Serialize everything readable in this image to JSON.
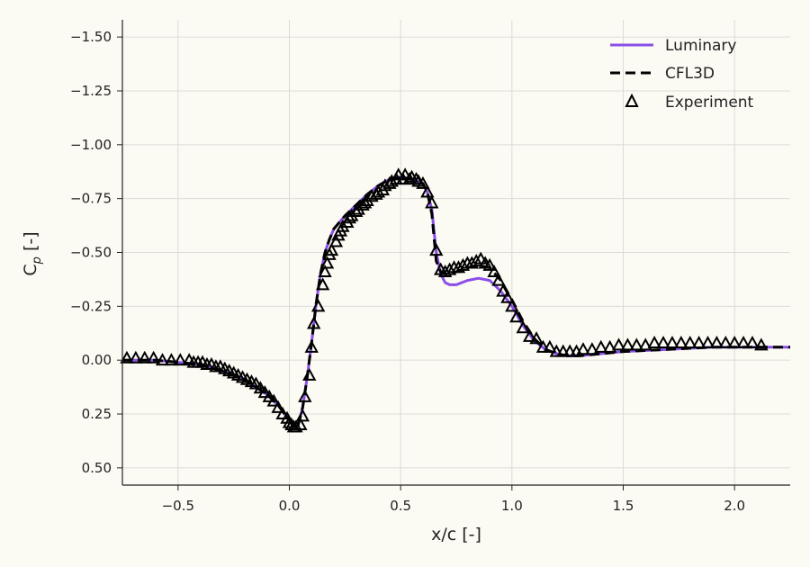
{
  "chart_data": {
    "type": "line",
    "title": "",
    "xlabel": "x/c [-]",
    "ylabel_main": "C",
    "ylabel_sub": "p",
    "ylabel_suffix": " [-]",
    "xlim": [
      -0.75,
      2.25
    ],
    "ylim": [
      0.58,
      -1.58
    ],
    "y_inverted": true,
    "grid": true,
    "legend_position": "top-right",
    "x_ticks": [
      -0.5,
      0.0,
      0.5,
      1.0,
      1.5,
      2.0
    ],
    "x_tick_labels": [
      "−0.5",
      "0.0",
      "0.5",
      "1.0",
      "1.5",
      "2.0"
    ],
    "y_ticks": [
      -1.5,
      -1.25,
      -1.0,
      -0.75,
      -0.5,
      -0.25,
      0.0,
      0.25,
      0.5
    ],
    "y_tick_labels": [
      "−1.50",
      "−1.25",
      "−1.00",
      "−0.75",
      "−0.50",
      "−0.25",
      "0.00",
      "0.25",
      "0.50"
    ],
    "colors": {
      "luminary": "#8b4fe8",
      "cfl3d": "#000000",
      "experiment": "#000000",
      "grid": "#dcdcd6",
      "background": "#fbfaf3"
    },
    "series": [
      {
        "name": "Luminary",
        "style": "solid",
        "x": [
          -0.75,
          -0.6,
          -0.5,
          -0.4,
          -0.3,
          -0.2,
          -0.1,
          -0.05,
          0.0,
          0.02,
          0.04,
          0.06,
          0.08,
          0.1,
          0.12,
          0.14,
          0.16,
          0.18,
          0.2,
          0.25,
          0.3,
          0.35,
          0.4,
          0.45,
          0.5,
          0.55,
          0.6,
          0.62,
          0.64,
          0.66,
          0.68,
          0.7,
          0.72,
          0.75,
          0.8,
          0.85,
          0.9,
          0.95,
          1.0,
          1.05,
          1.1,
          1.15,
          1.2,
          1.25,
          1.3,
          1.4,
          1.5,
          1.7,
          1.9,
          2.1,
          2.25
        ],
        "y": [
          0.0,
          0.0,
          0.01,
          0.02,
          0.05,
          0.09,
          0.16,
          0.21,
          0.28,
          0.31,
          0.3,
          0.22,
          0.08,
          -0.08,
          -0.26,
          -0.4,
          -0.5,
          -0.56,
          -0.61,
          -0.67,
          -0.72,
          -0.77,
          -0.81,
          -0.84,
          -0.85,
          -0.84,
          -0.82,
          -0.78,
          -0.7,
          -0.5,
          -0.4,
          -0.36,
          -0.35,
          -0.35,
          -0.37,
          -0.38,
          -0.37,
          -0.32,
          -0.25,
          -0.16,
          -0.09,
          -0.05,
          -0.03,
          -0.02,
          -0.02,
          -0.03,
          -0.04,
          -0.05,
          -0.06,
          -0.06,
          -0.06
        ]
      },
      {
        "name": "CFL3D",
        "style": "dashed",
        "x": [
          -0.75,
          -0.6,
          -0.5,
          -0.4,
          -0.3,
          -0.2,
          -0.1,
          -0.05,
          0.0,
          0.02,
          0.04,
          0.06,
          0.08,
          0.1,
          0.12,
          0.14,
          0.16,
          0.18,
          0.2,
          0.25,
          0.3,
          0.35,
          0.4,
          0.45,
          0.5,
          0.55,
          0.6,
          0.62,
          0.64,
          0.66,
          0.68,
          0.7,
          0.72,
          0.75,
          0.8,
          0.85,
          0.9,
          0.95,
          1.0,
          1.05,
          1.1,
          1.15,
          1.2,
          1.25,
          1.3,
          1.4,
          1.5,
          1.7,
          1.9,
          2.1,
          2.25
        ],
        "y": [
          0.0,
          0.0,
          0.01,
          0.02,
          0.05,
          0.09,
          0.16,
          0.21,
          0.28,
          0.31,
          0.3,
          0.22,
          0.08,
          -0.08,
          -0.26,
          -0.4,
          -0.5,
          -0.56,
          -0.61,
          -0.67,
          -0.72,
          -0.77,
          -0.81,
          -0.84,
          -0.85,
          -0.84,
          -0.82,
          -0.78,
          -0.68,
          -0.46,
          -0.41,
          -0.4,
          -0.4,
          -0.41,
          -0.43,
          -0.44,
          -0.43,
          -0.37,
          -0.28,
          -0.18,
          -0.1,
          -0.05,
          -0.03,
          -0.02,
          -0.02,
          -0.03,
          -0.04,
          -0.05,
          -0.06,
          -0.06,
          -0.06
        ]
      },
      {
        "name": "Experiment",
        "style": "markers",
        "x": [
          -0.73,
          -0.69,
          -0.65,
          -0.61,
          -0.57,
          -0.53,
          -0.49,
          -0.45,
          -0.43,
          -0.41,
          -0.39,
          -0.37,
          -0.35,
          -0.33,
          -0.31,
          -0.29,
          -0.27,
          -0.25,
          -0.23,
          -0.21,
          -0.19,
          -0.17,
          -0.15,
          -0.13,
          -0.11,
          -0.09,
          -0.07,
          -0.05,
          -0.03,
          -0.01,
          0.0,
          0.01,
          0.02,
          0.03,
          0.05,
          0.06,
          0.07,
          0.09,
          0.1,
          0.11,
          0.13,
          0.15,
          0.16,
          0.17,
          0.18,
          0.19,
          0.21,
          0.22,
          0.23,
          0.24,
          0.26,
          0.27,
          0.28,
          0.3,
          0.31,
          0.33,
          0.34,
          0.35,
          0.37,
          0.39,
          0.4,
          0.42,
          0.43,
          0.45,
          0.46,
          0.48,
          0.49,
          0.51,
          0.52,
          0.54,
          0.55,
          0.57,
          0.58,
          0.6,
          0.62,
          0.64,
          0.66,
          0.68,
          0.7,
          0.72,
          0.74,
          0.76,
          0.78,
          0.8,
          0.82,
          0.84,
          0.86,
          0.88,
          0.9,
          0.92,
          0.94,
          0.96,
          0.98,
          1.0,
          1.02,
          1.05,
          1.08,
          1.11,
          1.14,
          1.17,
          1.2,
          1.23,
          1.26,
          1.29,
          1.32,
          1.36,
          1.4,
          1.44,
          1.48,
          1.52,
          1.56,
          1.6,
          1.64,
          1.68,
          1.72,
          1.76,
          1.8,
          1.84,
          1.88,
          1.92,
          1.96,
          2.0,
          2.04,
          2.08,
          2.12
        ],
        "y": [
          -0.01,
          -0.01,
          -0.01,
          -0.01,
          0.0,
          0.0,
          0.0,
          0.0,
          0.01,
          0.01,
          0.01,
          0.02,
          0.02,
          0.03,
          0.03,
          0.04,
          0.05,
          0.06,
          0.07,
          0.08,
          0.09,
          0.1,
          0.11,
          0.13,
          0.15,
          0.17,
          0.19,
          0.22,
          0.25,
          0.27,
          0.29,
          0.3,
          0.31,
          0.31,
          0.3,
          0.26,
          0.17,
          0.07,
          -0.06,
          -0.17,
          -0.25,
          -0.35,
          -0.41,
          -0.45,
          -0.49,
          -0.51,
          -0.55,
          -0.58,
          -0.6,
          -0.62,
          -0.64,
          -0.66,
          -0.67,
          -0.69,
          -0.7,
          -0.72,
          -0.73,
          -0.74,
          -0.76,
          -0.77,
          -0.78,
          -0.79,
          -0.81,
          -0.82,
          -0.83,
          -0.84,
          -0.86,
          -0.84,
          -0.86,
          -0.84,
          -0.85,
          -0.84,
          -0.83,
          -0.82,
          -0.78,
          -0.73,
          -0.51,
          -0.42,
          -0.41,
          -0.42,
          -0.43,
          -0.43,
          -0.44,
          -0.45,
          -0.45,
          -0.46,
          -0.47,
          -0.45,
          -0.44,
          -0.41,
          -0.37,
          -0.32,
          -0.29,
          -0.25,
          -0.2,
          -0.15,
          -0.11,
          -0.1,
          -0.06,
          -0.06,
          -0.04,
          -0.04,
          -0.04,
          -0.04,
          -0.05,
          -0.05,
          -0.06,
          -0.06,
          -0.07,
          -0.07,
          -0.07,
          -0.07,
          -0.08,
          -0.08,
          -0.08,
          -0.08,
          -0.08,
          -0.08,
          -0.08,
          -0.08,
          -0.08,
          -0.08,
          -0.08,
          -0.08,
          -0.07
        ]
      }
    ]
  }
}
